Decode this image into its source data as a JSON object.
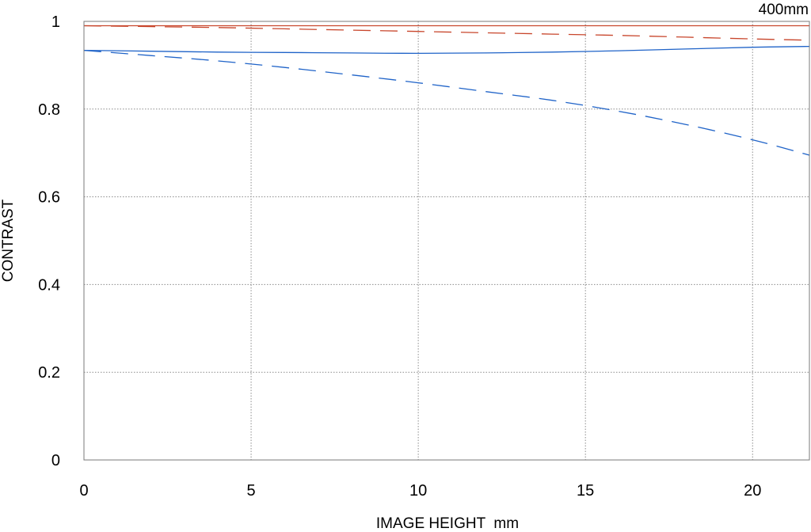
{
  "chart_data": {
    "type": "line",
    "title": "",
    "corner_label": "400mm",
    "xlabel": "IMAGE HEIGHT  mm",
    "ylabel": "CONTRAST",
    "xlim": [
      0,
      21.7
    ],
    "ylim": [
      0,
      1
    ],
    "xticks": [
      0,
      5,
      10,
      15,
      20
    ],
    "yticks": [
      0,
      0.2,
      0.4,
      0.6,
      0.8,
      1
    ],
    "x_tick_labels": [
      "0",
      "5",
      "10",
      "15",
      "20"
    ],
    "y_tick_labels": [
      "0",
      "0.2",
      "0.4",
      "0.6",
      "0.8",
      "1"
    ],
    "grid": true,
    "x": [
      0,
      2,
      4,
      6,
      8,
      10,
      12,
      14,
      16,
      18,
      20,
      21.7
    ],
    "series": [
      {
        "color": "#c8462c",
        "style": "solid",
        "values": [
          0.99,
          0.99,
          0.99,
          0.99,
          0.99,
          0.99,
          0.99,
          0.99,
          0.99,
          0.99,
          0.99,
          0.99
        ]
      },
      {
        "color": "#c8462c",
        "style": "dashed",
        "values": [
          0.99,
          0.988,
          0.986,
          0.983,
          0.98,
          0.977,
          0.974,
          0.971,
          0.968,
          0.964,
          0.96,
          0.957
        ]
      },
      {
        "color": "#1f63c8",
        "style": "solid",
        "values": [
          0.934,
          0.932,
          0.93,
          0.929,
          0.928,
          0.927,
          0.928,
          0.93,
          0.933,
          0.937,
          0.941,
          0.943
        ]
      },
      {
        "color": "#1f63c8",
        "style": "dashed",
        "values": [
          0.934,
          0.922,
          0.91,
          0.895,
          0.878,
          0.86,
          0.84,
          0.82,
          0.795,
          0.765,
          0.73,
          0.695
        ]
      }
    ]
  }
}
